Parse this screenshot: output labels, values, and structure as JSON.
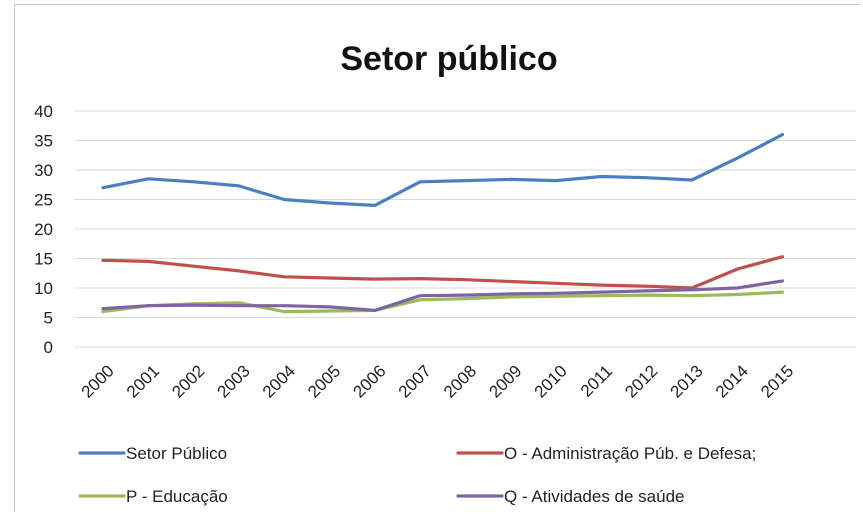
{
  "chart_data": {
    "type": "line",
    "title": "Setor público",
    "xlabel": "",
    "ylabel": "",
    "ylim": [
      0,
      40
    ],
    "yticks": [
      "0",
      "5",
      "10",
      "15",
      "20",
      "25",
      "30",
      "35",
      "40"
    ],
    "categories": [
      "2000",
      "2001",
      "2002",
      "2003",
      "2004",
      "2005",
      "2006",
      "2007",
      "2008",
      "2009",
      "2010",
      "2011",
      "2012",
      "2013",
      "2014",
      "2015"
    ],
    "grid": true,
    "legend_position": "bottom",
    "series": [
      {
        "name": "Setor Público",
        "color": "#4a7fc1",
        "values": [
          27,
          28.5,
          28,
          27.3,
          25,
          24.4,
          24,
          28,
          28.2,
          28.4,
          28.2,
          28.9,
          28.7,
          28.3,
          32,
          36
        ]
      },
      {
        "name": "O - Administração Púb. e Defesa;",
        "color": "#c0504d",
        "values": [
          14.7,
          14.5,
          13.7,
          12.9,
          11.9,
          11.7,
          11.5,
          11.6,
          11.4,
          11.1,
          10.8,
          10.5,
          10.3,
          10,
          13.2,
          15.3
        ]
      },
      {
        "name": "P - Educação",
        "color": "#9bbb59",
        "values": [
          6,
          7,
          7.3,
          7.5,
          6,
          6.1,
          6.2,
          8,
          8.2,
          8.5,
          8.6,
          8.7,
          8.8,
          8.7,
          8.9,
          9.3
        ]
      },
      {
        "name": "Q - Atividades de saúde",
        "color": "#8064a2",
        "values": [
          6.5,
          7,
          7.1,
          7,
          7,
          6.8,
          6.2,
          8.7,
          8.8,
          9,
          9.1,
          9.3,
          9.5,
          9.7,
          10,
          11.2
        ]
      }
    ]
  }
}
